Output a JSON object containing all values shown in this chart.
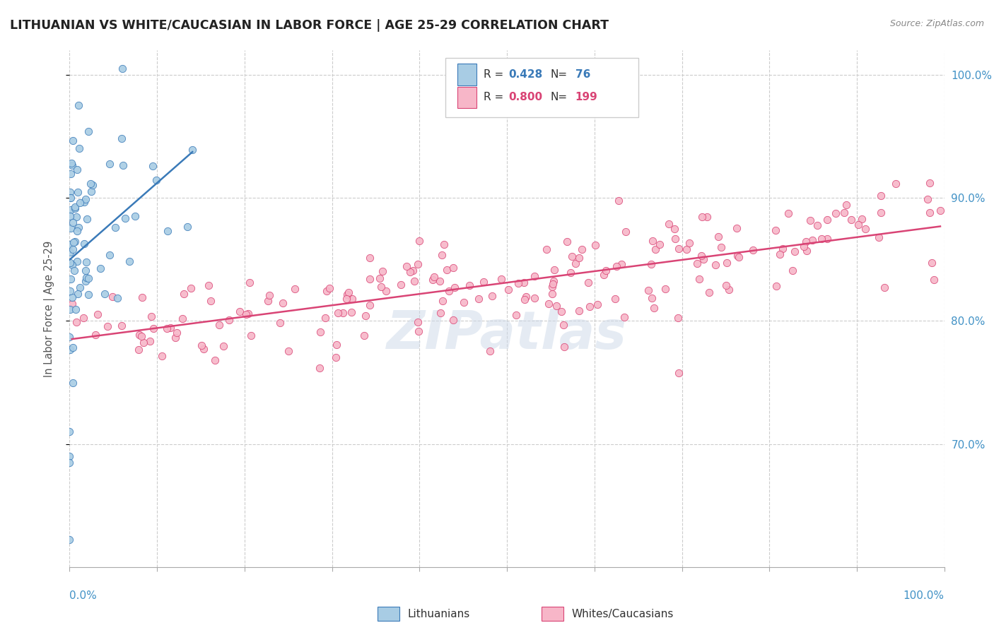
{
  "title": "LITHUANIAN VS WHITE/CAUCASIAN IN LABOR FORCE | AGE 25-29 CORRELATION CHART",
  "source": "Source: ZipAtlas.com",
  "ylabel": "In Labor Force | Age 25-29",
  "xlim": [
    0.0,
    1.0
  ],
  "ylim": [
    0.6,
    1.02
  ],
  "yticks": [
    0.7,
    0.8,
    0.9,
    1.0
  ],
  "ytick_labels": [
    "70.0%",
    "80.0%",
    "90.0%",
    "100.0%"
  ],
  "watermark": "ZIPatlas",
  "legend_blue_R": "0.428",
  "legend_blue_N": "76",
  "legend_pink_R": "0.800",
  "legend_pink_N": "199",
  "blue_color": "#a8cce4",
  "pink_color": "#f7b6c8",
  "blue_line_color": "#3a7ab8",
  "pink_line_color": "#d94475",
  "legend_R_color_blue": "#3a7ab8",
  "legend_R_color_pink": "#d94475",
  "legend_N_color_blue": "#3a7ab8",
  "legend_N_color_pink": "#d94475",
  "title_color": "#222222",
  "axis_label_color": "#4292c6",
  "seed_blue": 42,
  "seed_pink": 123
}
